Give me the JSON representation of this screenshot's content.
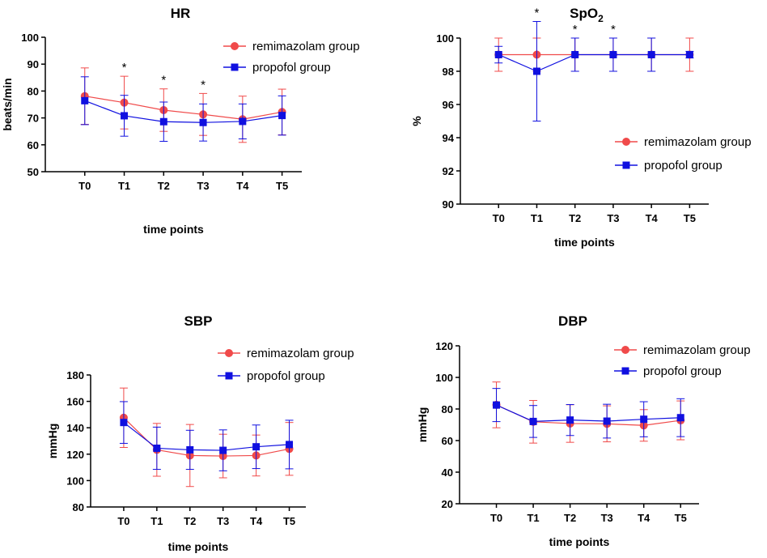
{
  "figure": {
    "colors": {
      "remimazolam": "#f04a4a",
      "propofol": "#1010e0",
      "axis": "#000000"
    }
  },
  "chart_data": [
    {
      "id": "hr",
      "type": "line",
      "title": "HR",
      "title_sub": "",
      "xlabel": "time points",
      "ylabel": "beats/min",
      "categories": [
        "T0",
        "T1",
        "T2",
        "T3",
        "T4",
        "T5"
      ],
      "ylim": [
        50,
        100
      ],
      "yticks": [
        50,
        60,
        70,
        80,
        90,
        100
      ],
      "legend_position": "top-right",
      "significance": [
        "",
        "*",
        "*",
        "*",
        "",
        ""
      ],
      "series": [
        {
          "name": "remimazolam group",
          "marker": "circle",
          "values": [
            78.1,
            75.7,
            72.9,
            71.3,
            69.5,
            72.2
          ],
          "errors": [
            10.5,
            9.8,
            7.9,
            7.8,
            8.6,
            8.5
          ]
        },
        {
          "name": "propofol group",
          "marker": "square",
          "values": [
            76.4,
            70.8,
            68.6,
            68.3,
            68.7,
            70.9
          ],
          "errors": [
            8.9,
            7.6,
            7.3,
            6.9,
            6.5,
            7.3
          ]
        }
      ]
    },
    {
      "id": "spo2",
      "type": "line",
      "title": "SpO",
      "title_sub": "2",
      "xlabel": "time points",
      "ylabel": "%",
      "categories": [
        "T0",
        "T1",
        "T2",
        "T3",
        "T4",
        "T5"
      ],
      "ylim": [
        90,
        100
      ],
      "yticks": [
        90,
        92,
        94,
        96,
        98,
        100
      ],
      "legend_position": "center-right",
      "significance": [
        "",
        "*",
        "*",
        "*",
        "",
        ""
      ],
      "series": [
        {
          "name": "remimazolam group",
          "marker": "circle",
          "values": [
            99,
            99,
            99,
            99,
            99,
            99
          ],
          "errors": [
            1,
            1,
            1,
            1,
            1,
            1
          ]
        },
        {
          "name": "propofol group",
          "marker": "square",
          "values": [
            99,
            98,
            99,
            99,
            99,
            99
          ],
          "errors": [
            0.5,
            3,
            1,
            1,
            1,
            0.2
          ]
        }
      ]
    },
    {
      "id": "sbp",
      "type": "line",
      "title": "SBP",
      "title_sub": "",
      "xlabel": "time points",
      "ylabel": "mmHg",
      "categories": [
        "T0",
        "T1",
        "T2",
        "T3",
        "T4",
        "T5"
      ],
      "ylim": [
        80,
        180
      ],
      "yticks": [
        80,
        100,
        120,
        140,
        160,
        180
      ],
      "legend_position": "top-right",
      "significance": [
        "",
        "",
        "",
        "",
        "",
        ""
      ],
      "series": [
        {
          "name": "remimazolam group",
          "marker": "circle",
          "values": [
            147.6,
            123.3,
            119.0,
            118.6,
            119.0,
            124.0
          ],
          "errors": [
            22.5,
            20.0,
            23.5,
            16.5,
            15.5,
            20.0
          ]
        },
        {
          "name": "propofol group",
          "marker": "square",
          "values": [
            144.0,
            124.5,
            123.3,
            122.9,
            125.6,
            127.3
          ],
          "errors": [
            15.8,
            16.0,
            14.8,
            15.5,
            16.5,
            18.4
          ]
        }
      ]
    },
    {
      "id": "dbp",
      "type": "line",
      "title": "DBP",
      "title_sub": "",
      "xlabel": "time points",
      "ylabel": "mmHg",
      "categories": [
        "T0",
        "T1",
        "T2",
        "T3",
        "T4",
        "T5"
      ],
      "ylim": [
        20,
        120
      ],
      "yticks": [
        20,
        40,
        60,
        80,
        100,
        120
      ],
      "legend_position": "top-right",
      "significance": [
        "",
        "",
        "",
        "",
        "",
        ""
      ],
      "series": [
        {
          "name": "remimazolam group",
          "marker": "circle",
          "values": [
            82.6,
            71.9,
            70.8,
            70.6,
            69.6,
            72.8
          ],
          "errors": [
            14.5,
            13.5,
            11.9,
            11.4,
            10.0,
            12.3
          ]
        },
        {
          "name": "propofol group",
          "marker": "square",
          "values": [
            82.5,
            72.1,
            73.0,
            72.3,
            73.5,
            74.5
          ],
          "errors": [
            10.5,
            10.1,
            9.8,
            10.7,
            11.1,
            12.0
          ]
        }
      ]
    }
  ]
}
